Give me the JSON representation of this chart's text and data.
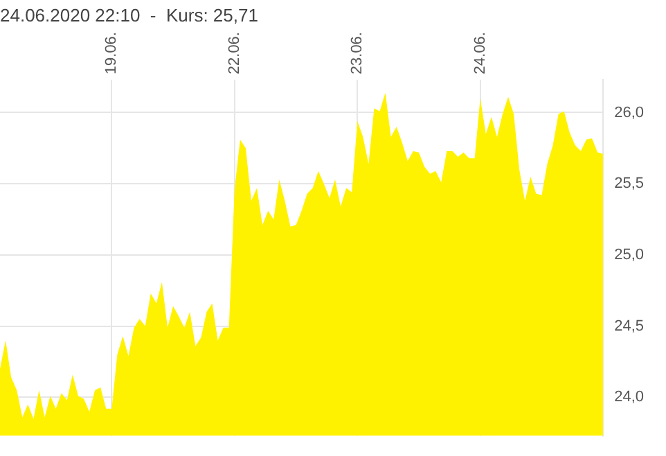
{
  "chart_data": {
    "type": "area",
    "title": "24.06.2020 22:10  -  Kurs: 25,71",
    "categories": [
      null,
      null,
      null,
      null,
      null,
      null,
      null,
      null,
      null,
      null,
      null,
      null,
      null,
      null,
      null,
      null,
      null,
      null,
      null,
      null,
      "19.06.",
      null,
      null,
      null,
      null,
      null,
      null,
      null,
      null,
      null,
      null,
      null,
      null,
      null,
      null,
      null,
      null,
      null,
      null,
      null,
      null,
      null,
      "22.06.",
      null,
      null,
      null,
      null,
      null,
      null,
      null,
      null,
      null,
      null,
      null,
      null,
      null,
      null,
      null,
      null,
      null,
      null,
      null,
      null,
      null,
      "23.06.",
      null,
      null,
      null,
      null,
      null,
      null,
      null,
      null,
      null,
      null,
      null,
      null,
      null,
      null,
      null,
      null,
      null,
      null,
      null,
      null,
      null,
      "24.06.",
      null,
      null,
      null,
      null,
      null,
      null,
      null,
      null,
      null,
      null,
      null,
      null,
      null,
      null,
      null,
      null,
      null,
      null,
      null,
      null,
      null,
      null
    ],
    "series": [
      {
        "color": "#fff200",
        "values": [
          24.2,
          24.4,
          24.14,
          24.05,
          23.86,
          23.95,
          23.85,
          24.05,
          23.86,
          24.01,
          23.92,
          24.03,
          23.98,
          24.16,
          24.01,
          23.99,
          23.9,
          24.05,
          24.07,
          23.92,
          23.92,
          24.3,
          24.43,
          24.29,
          24.49,
          24.55,
          24.5,
          24.73,
          24.66,
          24.81,
          24.49,
          24.64,
          24.57,
          24.49,
          24.6,
          24.36,
          24.42,
          24.6,
          24.66,
          24.4,
          24.49,
          24.49,
          25.46,
          25.81,
          25.75,
          25.38,
          25.47,
          25.21,
          25.31,
          25.25,
          25.53,
          25.38,
          25.2,
          25.21,
          25.31,
          25.43,
          25.47,
          25.59,
          25.5,
          25.4,
          25.53,
          25.34,
          25.47,
          25.44,
          25.94,
          25.83,
          25.64,
          26.03,
          26.01,
          26.14,
          25.83,
          25.9,
          25.79,
          25.66,
          25.73,
          25.72,
          25.62,
          25.57,
          25.59,
          25.51,
          25.73,
          25.73,
          25.69,
          25.72,
          25.68,
          25.68,
          26.1,
          25.85,
          25.97,
          25.83,
          25.99,
          26.11,
          25.99,
          25.6,
          25.38,
          25.55,
          25.43,
          25.42,
          25.64,
          25.77,
          25.99,
          26.01,
          25.86,
          25.77,
          25.73,
          25.81,
          25.82,
          25.72,
          25.71
        ]
      }
    ],
    "ylim": [
      23.73,
      26.23
    ],
    "yticks": [
      {
        "value": 24,
        "label": "24,0"
      },
      {
        "value": 24.5,
        "label": "24,5"
      },
      {
        "value": 25,
        "label": "25,0"
      },
      {
        "value": 25.5,
        "label": "25,5"
      },
      {
        "value": 26,
        "label": "26,0"
      }
    ],
    "grid": true,
    "legend": false
  }
}
